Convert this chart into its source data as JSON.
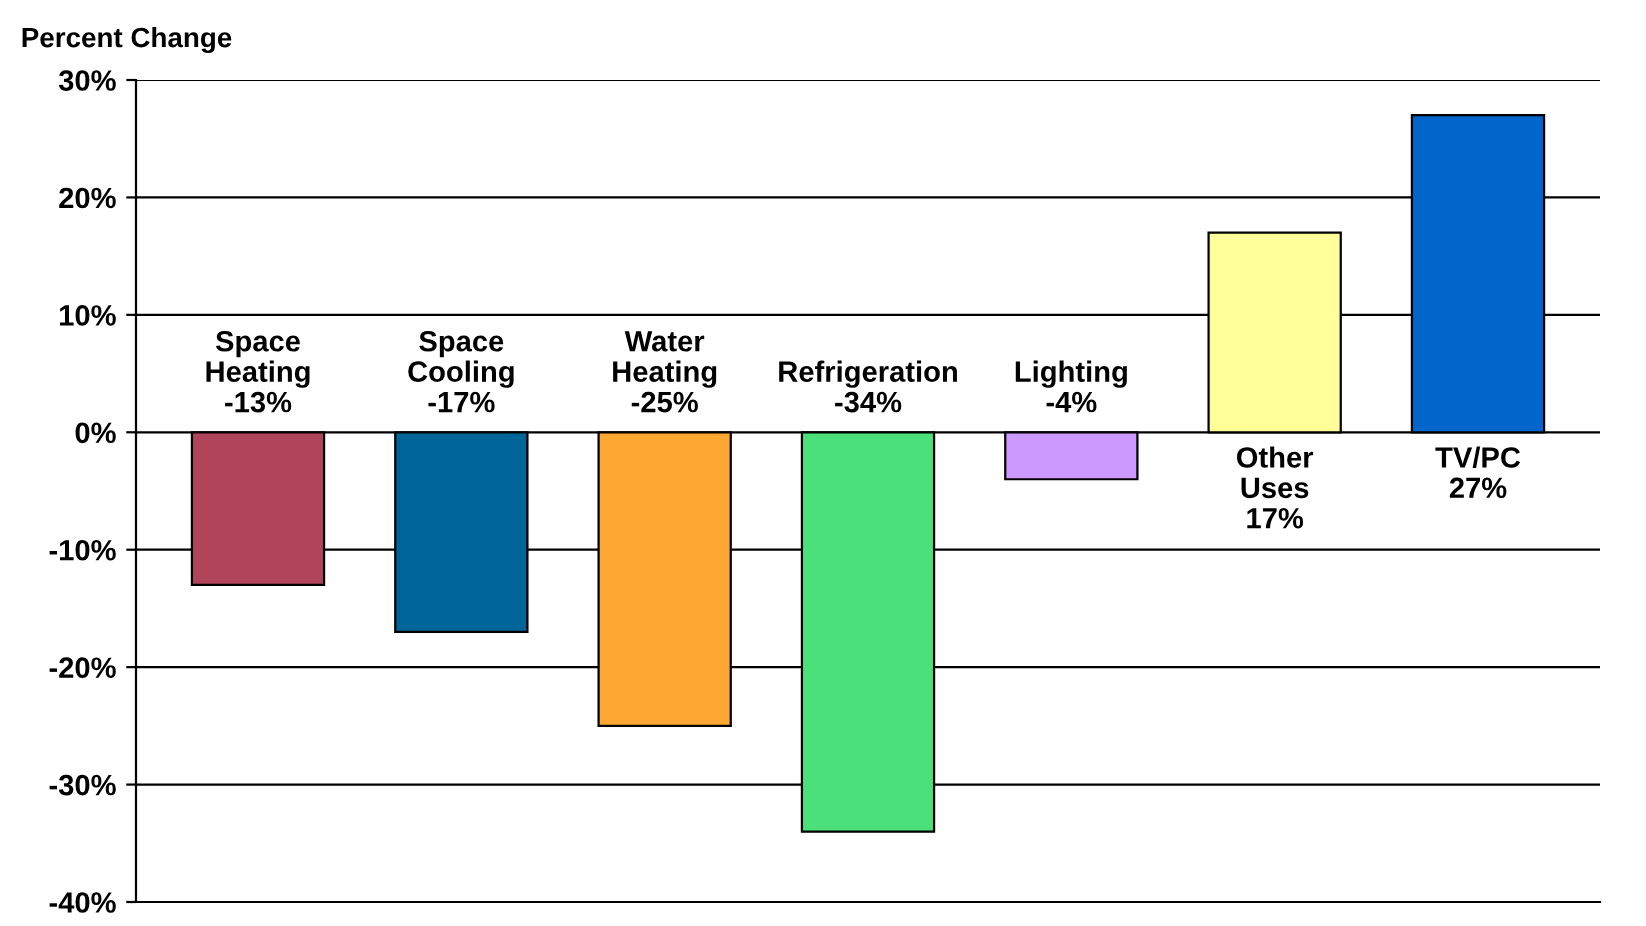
{
  "chart_data": {
    "type": "bar",
    "ylabel": "Percent Change",
    "categories": [
      "Space Heating",
      "Space Cooling",
      "Water Heating",
      "Refrigeration",
      "Lighting",
      "Other Uses",
      "TV/PC"
    ],
    "values": [
      -13,
      -17,
      -25,
      -34,
      -4,
      17,
      27
    ],
    "value_labels": [
      "-13%",
      "-17%",
      "-25%",
      "-34%",
      "-4%",
      "17%",
      "27%"
    ],
    "colors": [
      "#b0445a",
      "#006699",
      "#ffa733",
      "#4ce07a",
      "#cc99ff",
      "#ffff99",
      "#0066cc"
    ],
    "ylim": [
      -40,
      30
    ],
    "yticks": [
      {
        "value": -40,
        "label": "-40%"
      },
      {
        "value": -30,
        "label": "-30%"
      },
      {
        "value": -20,
        "label": "-20%"
      },
      {
        "value": -10,
        "label": "-10%"
      },
      {
        "value": 0,
        "label": "0%"
      },
      {
        "value": 10,
        "label": "10%"
      },
      {
        "value": 20,
        "label": "20%"
      },
      {
        "value": 30,
        "label": "30%"
      }
    ],
    "grid": "y",
    "legend": false
  }
}
